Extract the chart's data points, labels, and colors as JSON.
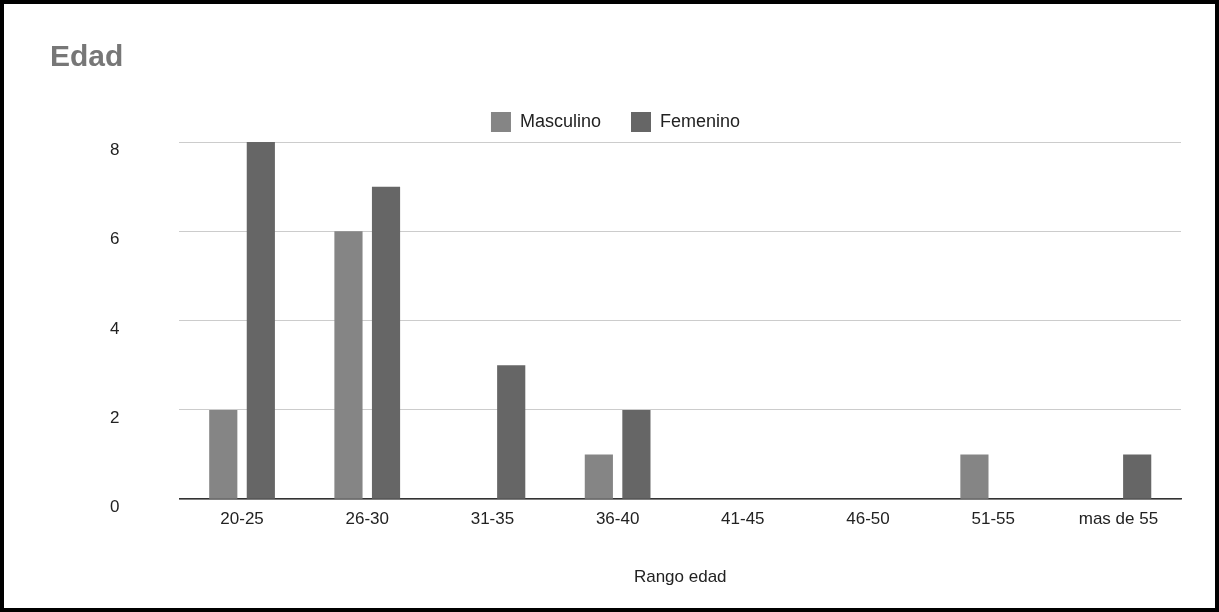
{
  "chart_data": {
    "type": "bar",
    "title": "Edad",
    "xlabel": "Rango edad",
    "categories": [
      "20-25",
      "26-30",
      "31-35",
      "36-40",
      "41-45",
      "46-50",
      "51-55",
      "mas de 55"
    ],
    "series": [
      {
        "name": "Masculino",
        "color": "#858585",
        "values": [
          2,
          6,
          0,
          1,
          0,
          0,
          1,
          0
        ]
      },
      {
        "name": "Femenino",
        "color": "#666666",
        "values": [
          8,
          7,
          3,
          2,
          0,
          0,
          0,
          1
        ]
      }
    ],
    "ylim": [
      0,
      8
    ],
    "yticks": [
      0,
      2,
      4,
      6,
      8
    ],
    "grid": "y",
    "legend": "top"
  }
}
